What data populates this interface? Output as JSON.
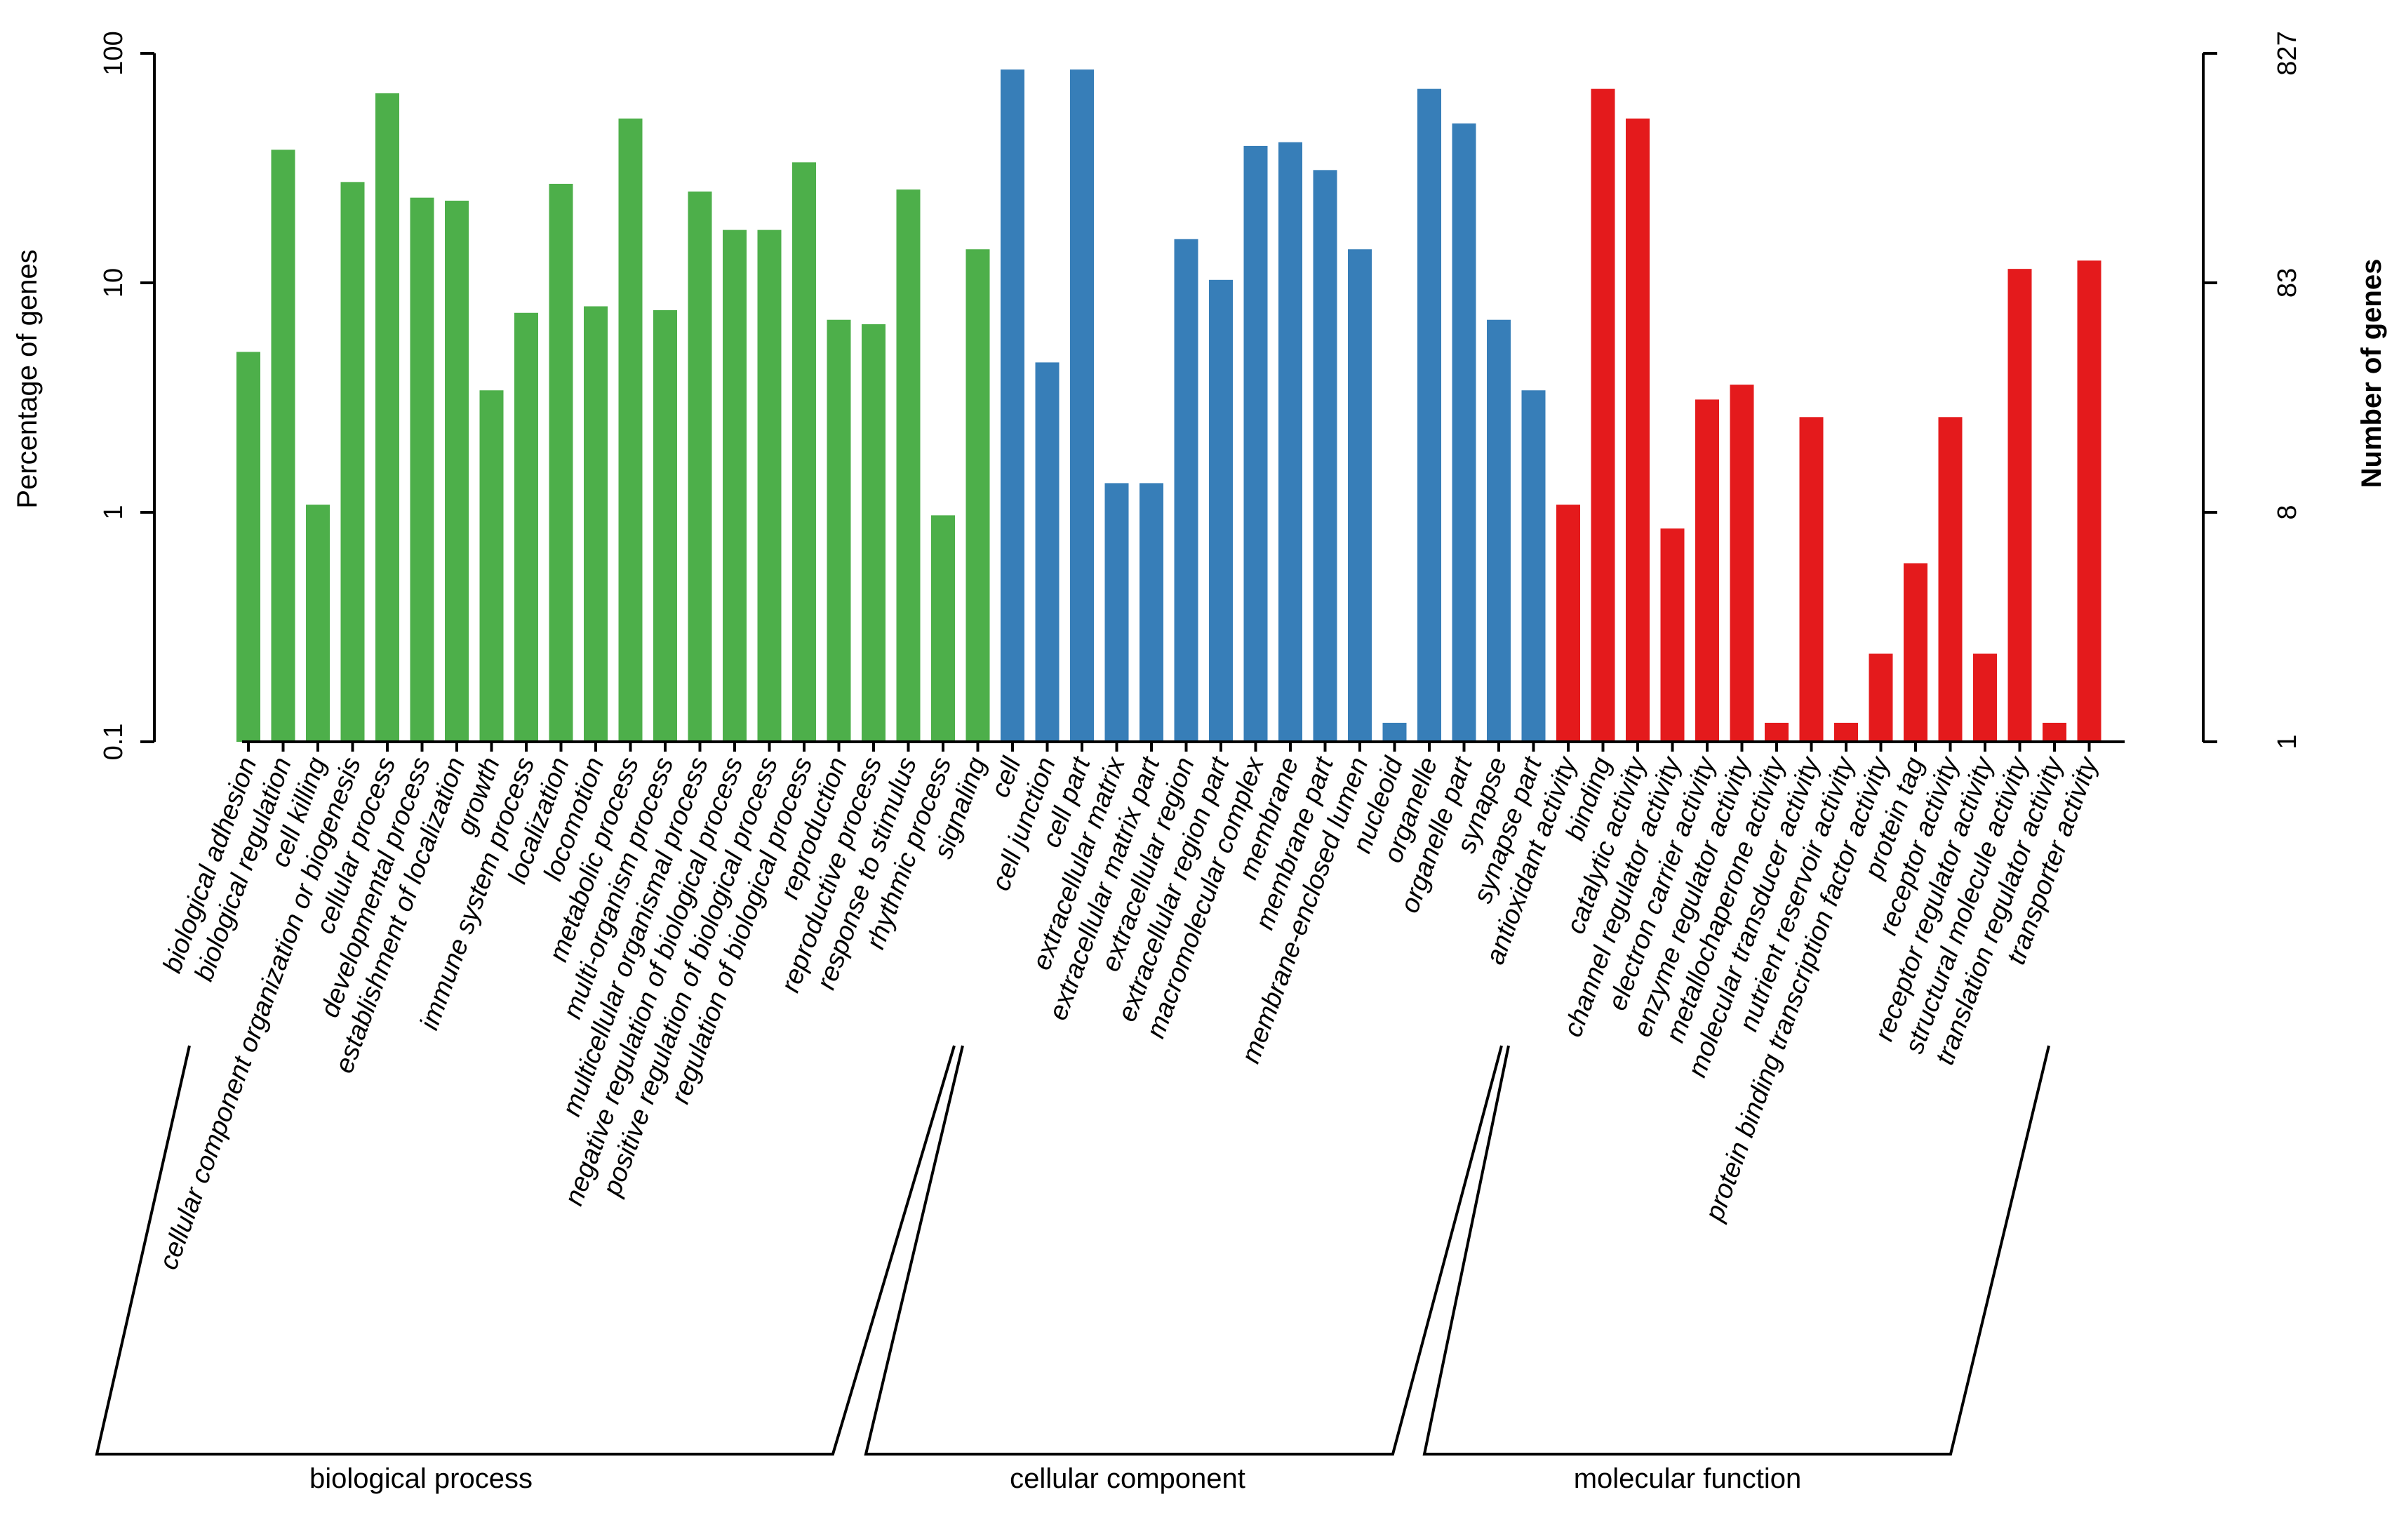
{
  "chart_data": {
    "type": "bar",
    "yscale": "log",
    "ylabel_left": "Percentage of genes",
    "ylabel_right": "Number of genes",
    "left_ticks": [
      {
        "value": 0.1,
        "label": "0.1"
      },
      {
        "value": 1,
        "label": "1"
      },
      {
        "value": 10,
        "label": "10"
      },
      {
        "value": 100,
        "label": "100"
      }
    ],
    "right_tick_labels": [
      "1",
      "8",
      "83",
      "827"
    ],
    "ylim": [
      0.1,
      100
    ],
    "groups": [
      {
        "name": "biological process",
        "color": "#4DAF4A",
        "categories": [
          "biological adhesion",
          "biological regulation",
          "cell killing",
          "cellular component organization or biogenesis",
          "cellular process",
          "developmental process",
          "establishment of localization",
          "growth",
          "immune system process",
          "localization",
          "locomotion",
          "metabolic process",
          "multi-organism process",
          "multicellular organismal process",
          "negative regulation of biological process",
          "positive regulation of biological process",
          "regulation of biological process",
          "reproduction",
          "reproductive process",
          "response to stimulus",
          "rhythmic process",
          "signaling"
        ],
        "values": [
          5,
          38,
          1.08,
          27.5,
          67,
          23.5,
          22.8,
          3.4,
          7.4,
          27,
          7.9,
          52,
          7.6,
          25,
          17,
          17,
          33.5,
          6.9,
          6.6,
          25.5,
          0.97,
          14
        ]
      },
      {
        "name": "cellular component",
        "color": "#377EB8",
        "categories": [
          "cell",
          "cell junction",
          "cell part",
          "extracellular matrix",
          "extracellular matrix part",
          "extracellular region",
          "extracellular region part",
          "macromolecular complex",
          "membrane",
          "membrane part",
          "membrane-enclosed lumen",
          "nucleoid",
          "organelle",
          "organelle part",
          "synapse",
          "synapse part"
        ],
        "values": [
          85,
          4.5,
          85,
          1.34,
          1.34,
          15.5,
          10.3,
          39.5,
          41,
          31,
          14,
          0.121,
          70,
          49.5,
          6.9,
          3.4
        ]
      },
      {
        "name": "molecular function",
        "color": "#E41A1C",
        "categories": [
          "antioxidant activity",
          "binding",
          "catalytic activity",
          "channel regulator activity",
          "electron carrier activity",
          "enzyme regulator activity",
          "metallochaperone activity",
          "molecular transducer activity",
          "nutrient reservoir activity",
          "protein binding transcription factor activity",
          "protein tag",
          "receptor activity",
          "receptor regulator activity",
          "structural molecule activity",
          "translation regulator activity",
          "transporter activity"
        ],
        "values": [
          1.08,
          70,
          52,
          0.85,
          3.1,
          3.6,
          0.121,
          2.6,
          0.121,
          0.242,
          0.6,
          2.6,
          0.242,
          11.5,
          0.121,
          12.5
        ]
      }
    ]
  }
}
